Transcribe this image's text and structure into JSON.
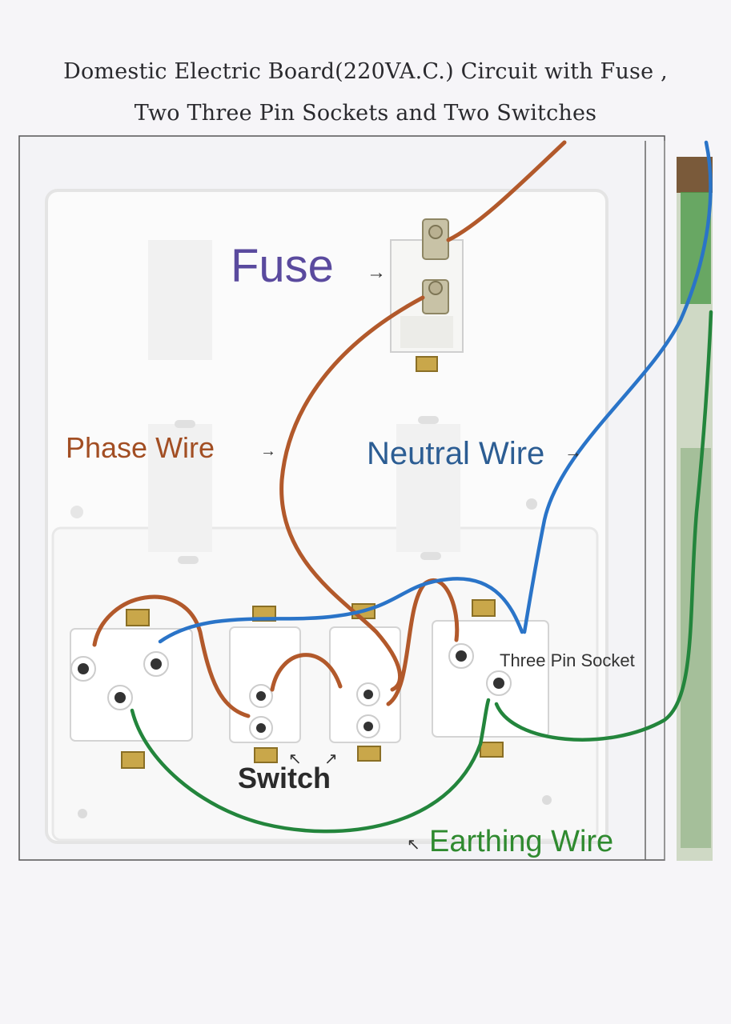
{
  "title": {
    "line1": "Domestic Electric Board(220VA.C.) Circuit with Fuse ,",
    "line2": "Two Three Pin Sockets and Two Switches"
  },
  "labels": {
    "fuse": "Fuse",
    "phase_wire": "Phase Wire",
    "neutral_wire": "Neutral Wire",
    "three_pin_socket": "Three Pin Socket",
    "switch": "Switch",
    "earthing_wire": "Earthing Wire"
  },
  "colors": {
    "phase": "#b2592b",
    "neutral": "#2a74c8",
    "earth": "#23853c",
    "fuse_label": "#5a4a9e",
    "phase_label": "#a24e23",
    "neutral_label": "#2c5d93",
    "earth_label": "#2f8a2f",
    "board": "#fbfbfb",
    "brass": "#c9a74a"
  }
}
